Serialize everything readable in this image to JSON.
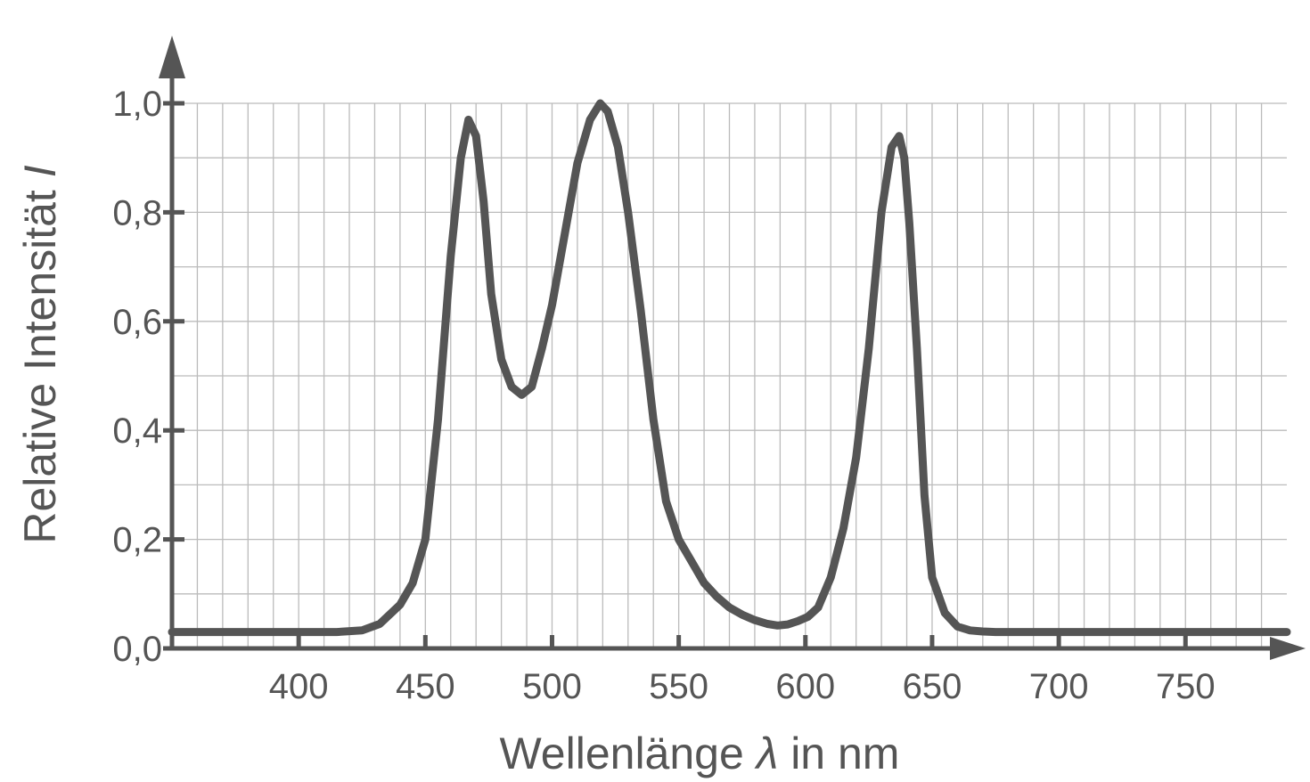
{
  "chart_data": {
    "type": "line",
    "xlabel": {
      "prefix": "Wellenlänge ",
      "symbol": "λ",
      "suffix": " in nm"
    },
    "ylabel": {
      "prefix": "Relative Intensität ",
      "symbol": "I"
    },
    "x_ticks": [
      400,
      450,
      500,
      550,
      600,
      650,
      700,
      750
    ],
    "x_tick_labels": [
      "400",
      "450",
      "500",
      "550",
      "600",
      "650",
      "700",
      "750"
    ],
    "y_ticks": [
      0,
      0.2,
      0.4,
      0.6,
      0.8,
      1.0
    ],
    "y_tick_labels": [
      "0,0",
      "0,2",
      "0,4",
      "0,6",
      "0,8",
      "1,0"
    ],
    "xlim": [
      350,
      790
    ],
    "ylim": [
      0,
      1.0
    ],
    "grid": true,
    "line_color": "#555555",
    "grid_color": "#bbbbbb",
    "series": [
      {
        "x": [
          350,
          380,
          400,
          415,
          425,
          432,
          440,
          445,
          450,
          455,
          460,
          464,
          467,
          470,
          473,
          476,
          480,
          484,
          488,
          492,
          496,
          500,
          505,
          510,
          515,
          519,
          522,
          526,
          530,
          535,
          540,
          545,
          550,
          555,
          560,
          565,
          570,
          575,
          580,
          585,
          589,
          593,
          597,
          601,
          605,
          610,
          615,
          620,
          625,
          630,
          634,
          637,
          639,
          641,
          644,
          647,
          650,
          655,
          660,
          665,
          670,
          675,
          700,
          750,
          790
        ],
        "y": [
          0.03,
          0.03,
          0.03,
          0.03,
          0.033,
          0.045,
          0.08,
          0.12,
          0.2,
          0.42,
          0.72,
          0.9,
          0.97,
          0.94,
          0.82,
          0.65,
          0.53,
          0.48,
          0.465,
          0.48,
          0.55,
          0.63,
          0.76,
          0.89,
          0.97,
          1.0,
          0.985,
          0.92,
          0.8,
          0.62,
          0.42,
          0.27,
          0.2,
          0.16,
          0.12,
          0.095,
          0.075,
          0.062,
          0.052,
          0.045,
          0.042,
          0.044,
          0.05,
          0.058,
          0.075,
          0.13,
          0.22,
          0.35,
          0.55,
          0.8,
          0.92,
          0.94,
          0.9,
          0.78,
          0.55,
          0.28,
          0.13,
          0.065,
          0.04,
          0.033,
          0.031,
          0.03,
          0.03,
          0.03,
          0.03
        ]
      }
    ]
  }
}
